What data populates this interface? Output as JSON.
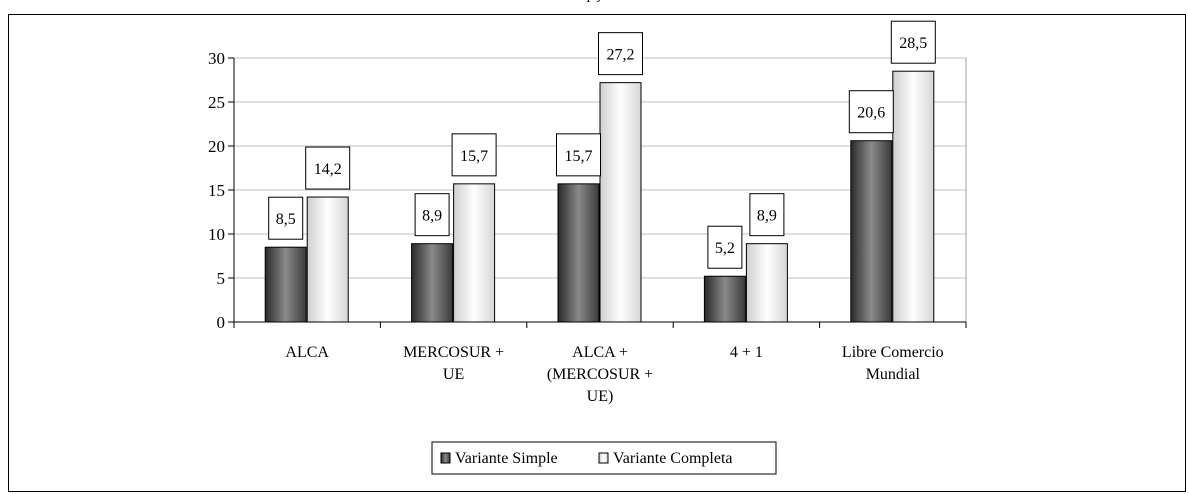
{
  "header": {
    "title_partial": "p              j"
  },
  "chart_data": {
    "type": "bar",
    "title": "",
    "xlabel": "",
    "ylabel": "",
    "ylim": [
      0,
      30
    ],
    "yticks": [
      0,
      5,
      10,
      15,
      20,
      25,
      30
    ],
    "grid": true,
    "legend_position": "bottom",
    "categories": [
      [
        "ALCA"
      ],
      [
        "MERCOSUR +",
        "UE"
      ],
      [
        "ALCA +",
        "(MERCOSUR +",
        "UE)"
      ],
      [
        "4 + 1"
      ],
      [
        "Libre Comercio",
        "Mundial"
      ]
    ],
    "series": [
      {
        "name": "Variante Simple",
        "values": [
          8.5,
          8.9,
          15.7,
          5.2,
          20.6
        ],
        "labels": [
          "8,5",
          "8,9",
          "15,7",
          "5,2",
          "20,6"
        ],
        "color": "#5f5f5f"
      },
      {
        "name": "Variante Completa",
        "values": [
          14.2,
          15.7,
          27.2,
          8.9,
          28.5
        ],
        "labels": [
          "14,2",
          "15,7",
          "27,2",
          "8,9",
          "28,5"
        ],
        "color": "#e8e8e8"
      }
    ]
  }
}
